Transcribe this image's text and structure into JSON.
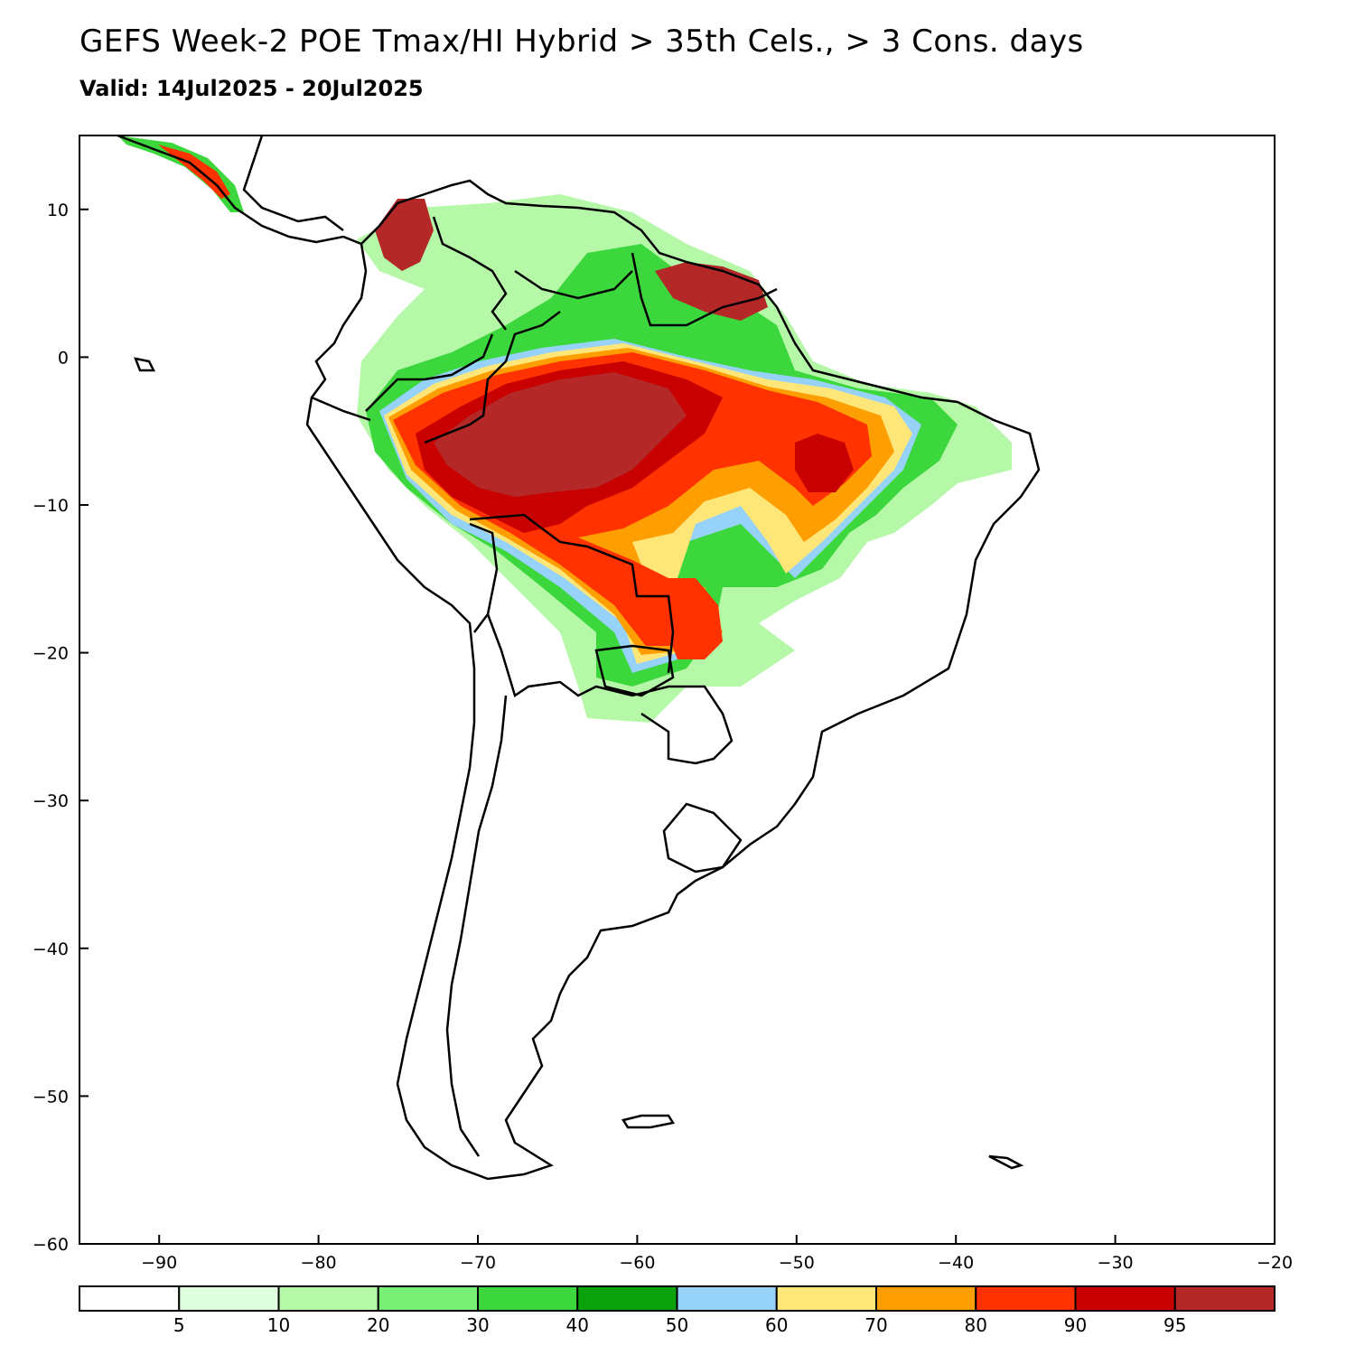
{
  "title": "GEFS Week-2 POE Tmax/HI Hybrid > 35th Cels., > 3 Cons. days",
  "subtitle": "Valid: 14Jul2025 - 20Jul2025",
  "map": {
    "lon_range": [
      -95,
      -20
    ],
    "lat_range": [
      -60,
      15
    ],
    "lon_ticks": [
      -90,
      -80,
      -70,
      -60,
      -50,
      -40,
      -30,
      -20
    ],
    "lat_ticks": [
      10,
      0,
      -10,
      -20,
      -30,
      -40,
      -50,
      -60
    ]
  },
  "colorbar": {
    "colors": [
      "#ffffff",
      "#e0ffdf",
      "#b4f8a8",
      "#78f073",
      "#3cd73c",
      "#0ba20b",
      "#96d2fa",
      "#ffe678",
      "#ff9e00",
      "#ff3200",
      "#c80000",
      "#b42828"
    ],
    "labels": [
      "5",
      "10",
      "20",
      "30",
      "40",
      "50",
      "60",
      "70",
      "80",
      "90",
      "95"
    ]
  }
}
